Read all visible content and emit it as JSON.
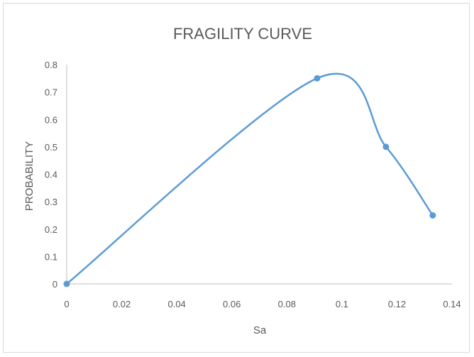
{
  "chart_data": {
    "type": "scatter",
    "title": "FRAGILITY CURVE",
    "xlabel": "Sa",
    "ylabel": "PROBABILITY",
    "xlim": [
      0,
      0.14
    ],
    "ylim": [
      0,
      0.8
    ],
    "x_ticks": [
      "0",
      "0.02",
      "0.04",
      "0.06",
      "0.08",
      "0.1",
      "0.12",
      "0.14"
    ],
    "y_ticks": [
      "0",
      "0.1",
      "0.2",
      "0.3",
      "0.4",
      "0.5",
      "0.6",
      "0.7",
      "0.8"
    ],
    "grid": false,
    "smoothed_line": true,
    "series": [
      {
        "color": "#5b9bd5",
        "x": [
          0,
          0.091,
          0.116,
          0.133
        ],
        "y": [
          0,
          0.75,
          0.5,
          0.25
        ]
      }
    ]
  }
}
